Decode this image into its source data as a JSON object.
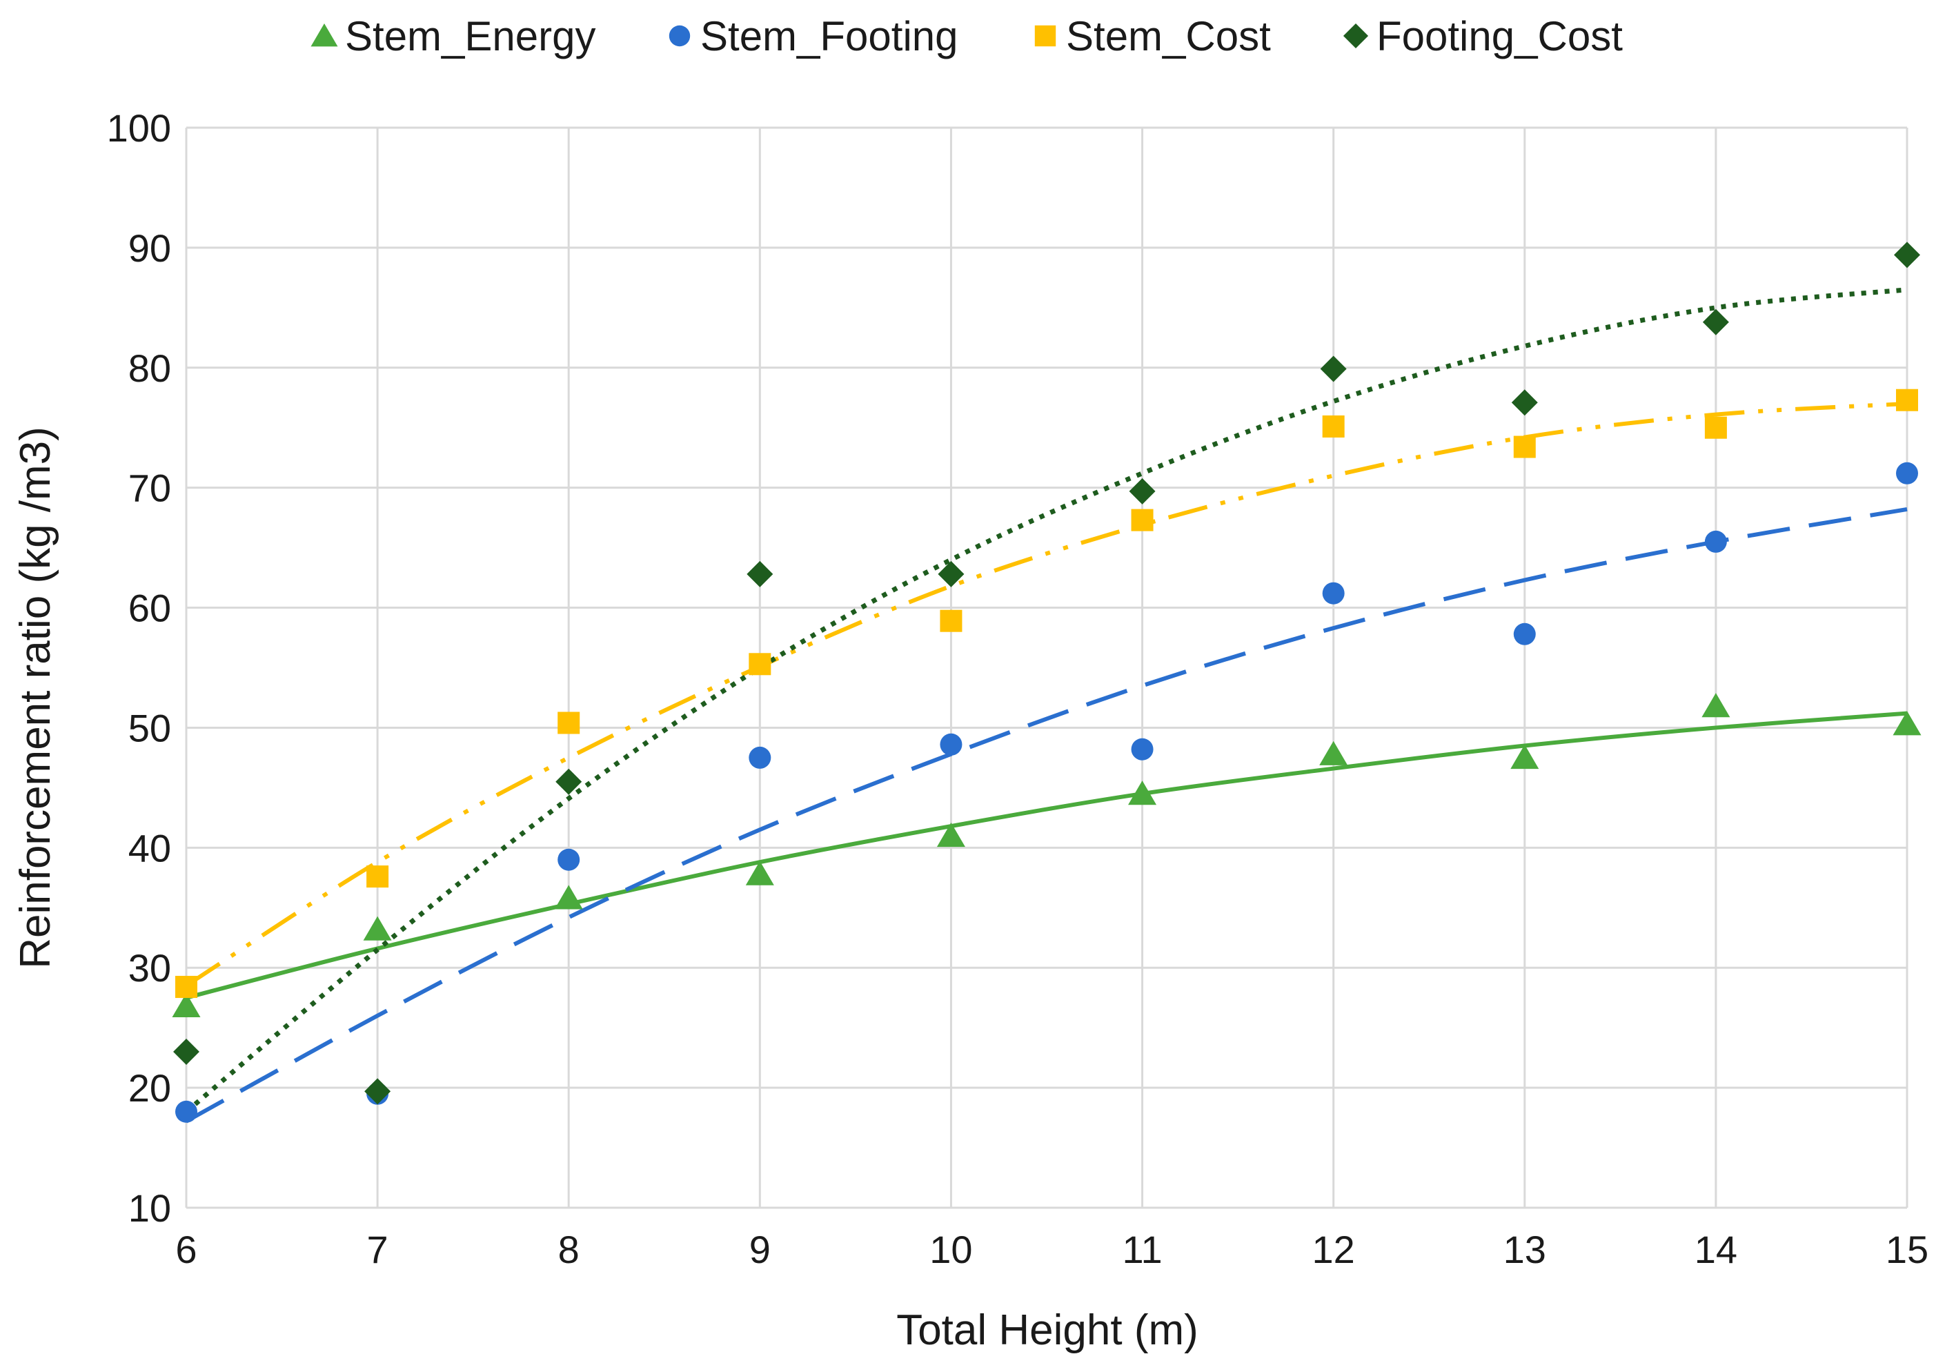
{
  "chart_data": {
    "type": "scatter",
    "title": "",
    "xlabel": "Total Height (m)",
    "ylabel": "Reinforcement ratio (kg /m3)",
    "xlim": [
      6,
      15
    ],
    "ylim": [
      10,
      100
    ],
    "x_ticks": [
      6,
      7,
      8,
      9,
      10,
      11,
      12,
      13,
      14,
      15
    ],
    "y_ticks": [
      10,
      20,
      30,
      40,
      50,
      60,
      70,
      80,
      90,
      100
    ],
    "grid": true,
    "legend_position": "top",
    "x": [
      6,
      7,
      8,
      9,
      10,
      11,
      12,
      13,
      14,
      15
    ],
    "series": [
      {
        "name": "Stem_Energy",
        "color": "#4aaa3c",
        "marker": "triangle",
        "trend_style": "solid",
        "values": [
          26.8,
          33.2,
          35.8,
          37.8,
          41.0,
          44.5,
          47.8,
          47.5,
          51.8,
          50.3
        ],
        "trend": [
          27.5,
          31.6,
          35.3,
          38.8,
          41.8,
          44.5,
          46.6,
          48.5,
          50.0,
          51.2
        ]
      },
      {
        "name": "Stem_Footing",
        "color": "#2a6fcf",
        "marker": "circle",
        "trend_style": "dashed",
        "values": [
          18.0,
          19.5,
          39.0,
          47.5,
          48.6,
          48.2,
          61.2,
          57.8,
          65.5,
          71.2
        ],
        "trend": [
          17.2,
          26.0,
          34.2,
          41.5,
          47.8,
          53.5,
          58.3,
          62.3,
          65.5,
          68.2
        ]
      },
      {
        "name": "Stem_Cost",
        "color": "#ffc000",
        "marker": "square",
        "trend_style": "dash-dot-dot",
        "values": [
          28.4,
          37.6,
          50.4,
          55.3,
          58.9,
          67.3,
          75.1,
          73.4,
          75.0,
          77.3
        ],
        "trend": [
          28.5,
          38.8,
          47.5,
          55.1,
          61.8,
          66.9,
          71.0,
          74.2,
          76.1,
          77.0
        ]
      },
      {
        "name": "Footing_Cost",
        "color": "#1e5c1e",
        "marker": "diamond",
        "trend_style": "dotted",
        "values": [
          23.0,
          19.7,
          45.5,
          62.8,
          62.8,
          69.7,
          79.9,
          77.1,
          83.8,
          89.4
        ],
        "trend": [
          18.0,
          31.5,
          44.1,
          55.0,
          64.0,
          71.2,
          77.2,
          81.8,
          85.0,
          86.5
        ]
      }
    ]
  }
}
